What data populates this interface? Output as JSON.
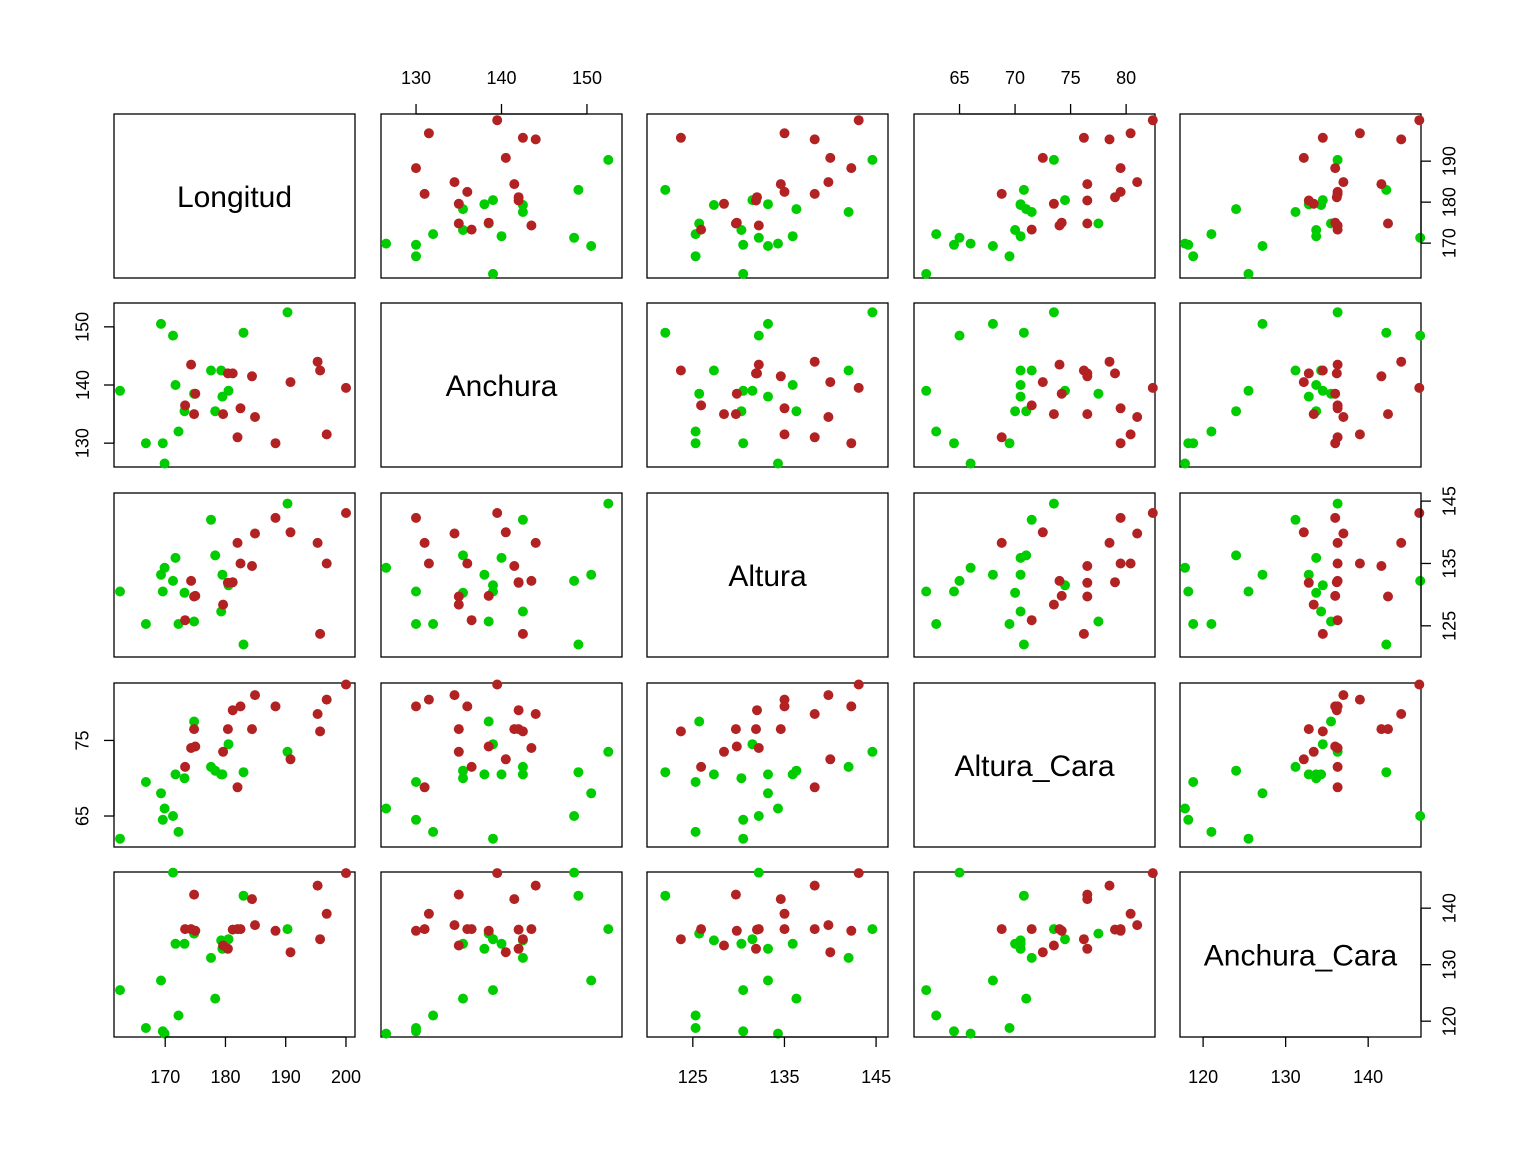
{
  "chart_data": {
    "type": "scatter",
    "subtype": "scatterplot-matrix",
    "variables": [
      "Longitud",
      "Anchura",
      "Altura",
      "Altura_Cara",
      "Anchura_Cara"
    ],
    "group_colors": [
      "#b22222",
      "#00cc00"
    ],
    "ranges": {
      "Longitud": [
        161.5,
        201.5
      ],
      "Anchura": [
        125.9,
        154.1
      ],
      "Altura": [
        120.0,
        146.3
      ],
      "Altura_Cara": [
        60.9,
        82.6
      ],
      "Anchura_Cara": [
        117.2,
        146.4
      ]
    },
    "axes": [
      {
        "variable": "Longitud",
        "side": "bottom",
        "ticks": [
          170,
          180,
          190,
          200
        ],
        "labels": [
          "170",
          "180",
          "190",
          "200"
        ]
      },
      {
        "variable": "Altura",
        "side": "bottom",
        "ticks": [
          125,
          135,
          145
        ],
        "labels": [
          "125",
          "135",
          "145"
        ]
      },
      {
        "variable": "Anchura_Cara",
        "side": "bottom",
        "ticks": [
          120,
          130,
          140
        ],
        "labels": [
          "120",
          "130",
          "140"
        ]
      },
      {
        "variable": "Anchura",
        "side": "top",
        "ticks": [
          130,
          140,
          150
        ],
        "labels": [
          "130",
          "140",
          "150"
        ]
      },
      {
        "variable": "Altura_Cara",
        "side": "top",
        "ticks": [
          65,
          70,
          75,
          80
        ],
        "labels": [
          "65",
          "70",
          "75",
          "80"
        ]
      },
      {
        "variable": "Anchura",
        "side": "left",
        "ticks": [
          130,
          140,
          150
        ],
        "labels": [
          "130",
          "140",
          "150"
        ]
      },
      {
        "variable": "Altura_Cara",
        "side": "left",
        "ticks": [
          65,
          75
        ],
        "labels": [
          "65",
          "75"
        ]
      },
      {
        "variable": "Longitud",
        "side": "right",
        "ticks": [
          170,
          180,
          190
        ],
        "labels": [
          "170",
          "180",
          "190"
        ]
      },
      {
        "variable": "Altura",
        "side": "right",
        "ticks": [
          125,
          135,
          145
        ],
        "labels": [
          "125",
          "135",
          "145"
        ]
      },
      {
        "variable": "Anchura_Cara",
        "side": "right",
        "ticks": [
          120,
          130,
          140
        ],
        "labels": [
          "120",
          "130",
          "140"
        ]
      }
    ],
    "series": [
      {
        "color": "#00cc00",
        "points": [
          [
            162.5,
            139.0,
            130.5,
            62.0,
            125.5
          ],
          [
            166.8,
            130.0,
            125.3,
            69.5,
            118.8
          ],
          [
            169.3,
            150.5,
            133.2,
            68.0,
            127.2
          ],
          [
            169.6,
            130.0,
            130.5,
            64.5,
            118.2
          ],
          [
            169.9,
            126.5,
            134.3,
            66.0,
            117.8
          ],
          [
            171.3,
            148.5,
            132.2,
            65.0,
            146.3
          ],
          [
            171.7,
            140.0,
            135.9,
            70.5,
            133.7
          ],
          [
            172.2,
            132.0,
            125.3,
            62.9,
            121.0
          ],
          [
            173.2,
            135.5,
            130.3,
            70.0,
            133.7
          ],
          [
            174.8,
            138.5,
            125.7,
            77.5,
            135.5
          ],
          [
            177.6,
            142.5,
            142.0,
            71.5,
            131.2
          ],
          [
            178.3,
            135.5,
            136.3,
            71.0,
            124.0
          ],
          [
            179.3,
            142.5,
            127.3,
            70.5,
            134.3
          ],
          [
            179.5,
            138.0,
            133.2,
            70.5,
            132.8
          ],
          [
            180.5,
            139.0,
            131.5,
            74.5,
            134.5
          ],
          [
            183.0,
            149.0,
            122.0,
            70.8,
            142.2
          ],
          [
            190.3,
            152.5,
            144.6,
            73.5,
            136.3
          ]
        ]
      },
      {
        "color": "#b22222",
        "points": [
          [
            173.3,
            136.5,
            125.9,
            71.5,
            136.3
          ],
          [
            174.3,
            143.5,
            132.2,
            74.0,
            136.3
          ],
          [
            174.8,
            135.0,
            129.7,
            76.5,
            142.4
          ],
          [
            175.0,
            138.5,
            129.8,
            74.2,
            136.0
          ],
          [
            179.6,
            135.0,
            128.4,
            73.5,
            133.4
          ],
          [
            180.4,
            142.0,
            131.9,
            76.5,
            132.8
          ],
          [
            181.2,
            142.0,
            132.0,
            79.0,
            136.2
          ],
          [
            182.0,
            131.0,
            138.3,
            68.8,
            136.3
          ],
          [
            182.5,
            136.0,
            135.0,
            79.5,
            136.3
          ],
          [
            184.4,
            141.5,
            134.6,
            76.5,
            141.6
          ],
          [
            184.9,
            134.5,
            139.8,
            81.0,
            137.0
          ],
          [
            188.3,
            130.0,
            142.3,
            79.5,
            136.0
          ],
          [
            190.8,
            140.5,
            140.0,
            72.5,
            132.2
          ],
          [
            195.3,
            144.0,
            138.3,
            78.5,
            144.0
          ],
          [
            195.7,
            142.5,
            123.7,
            76.2,
            134.5
          ],
          [
            196.8,
            131.5,
            135.0,
            80.4,
            139.0
          ],
          [
            200.0,
            139.5,
            143.1,
            82.4,
            146.2
          ]
        ]
      }
    ]
  }
}
